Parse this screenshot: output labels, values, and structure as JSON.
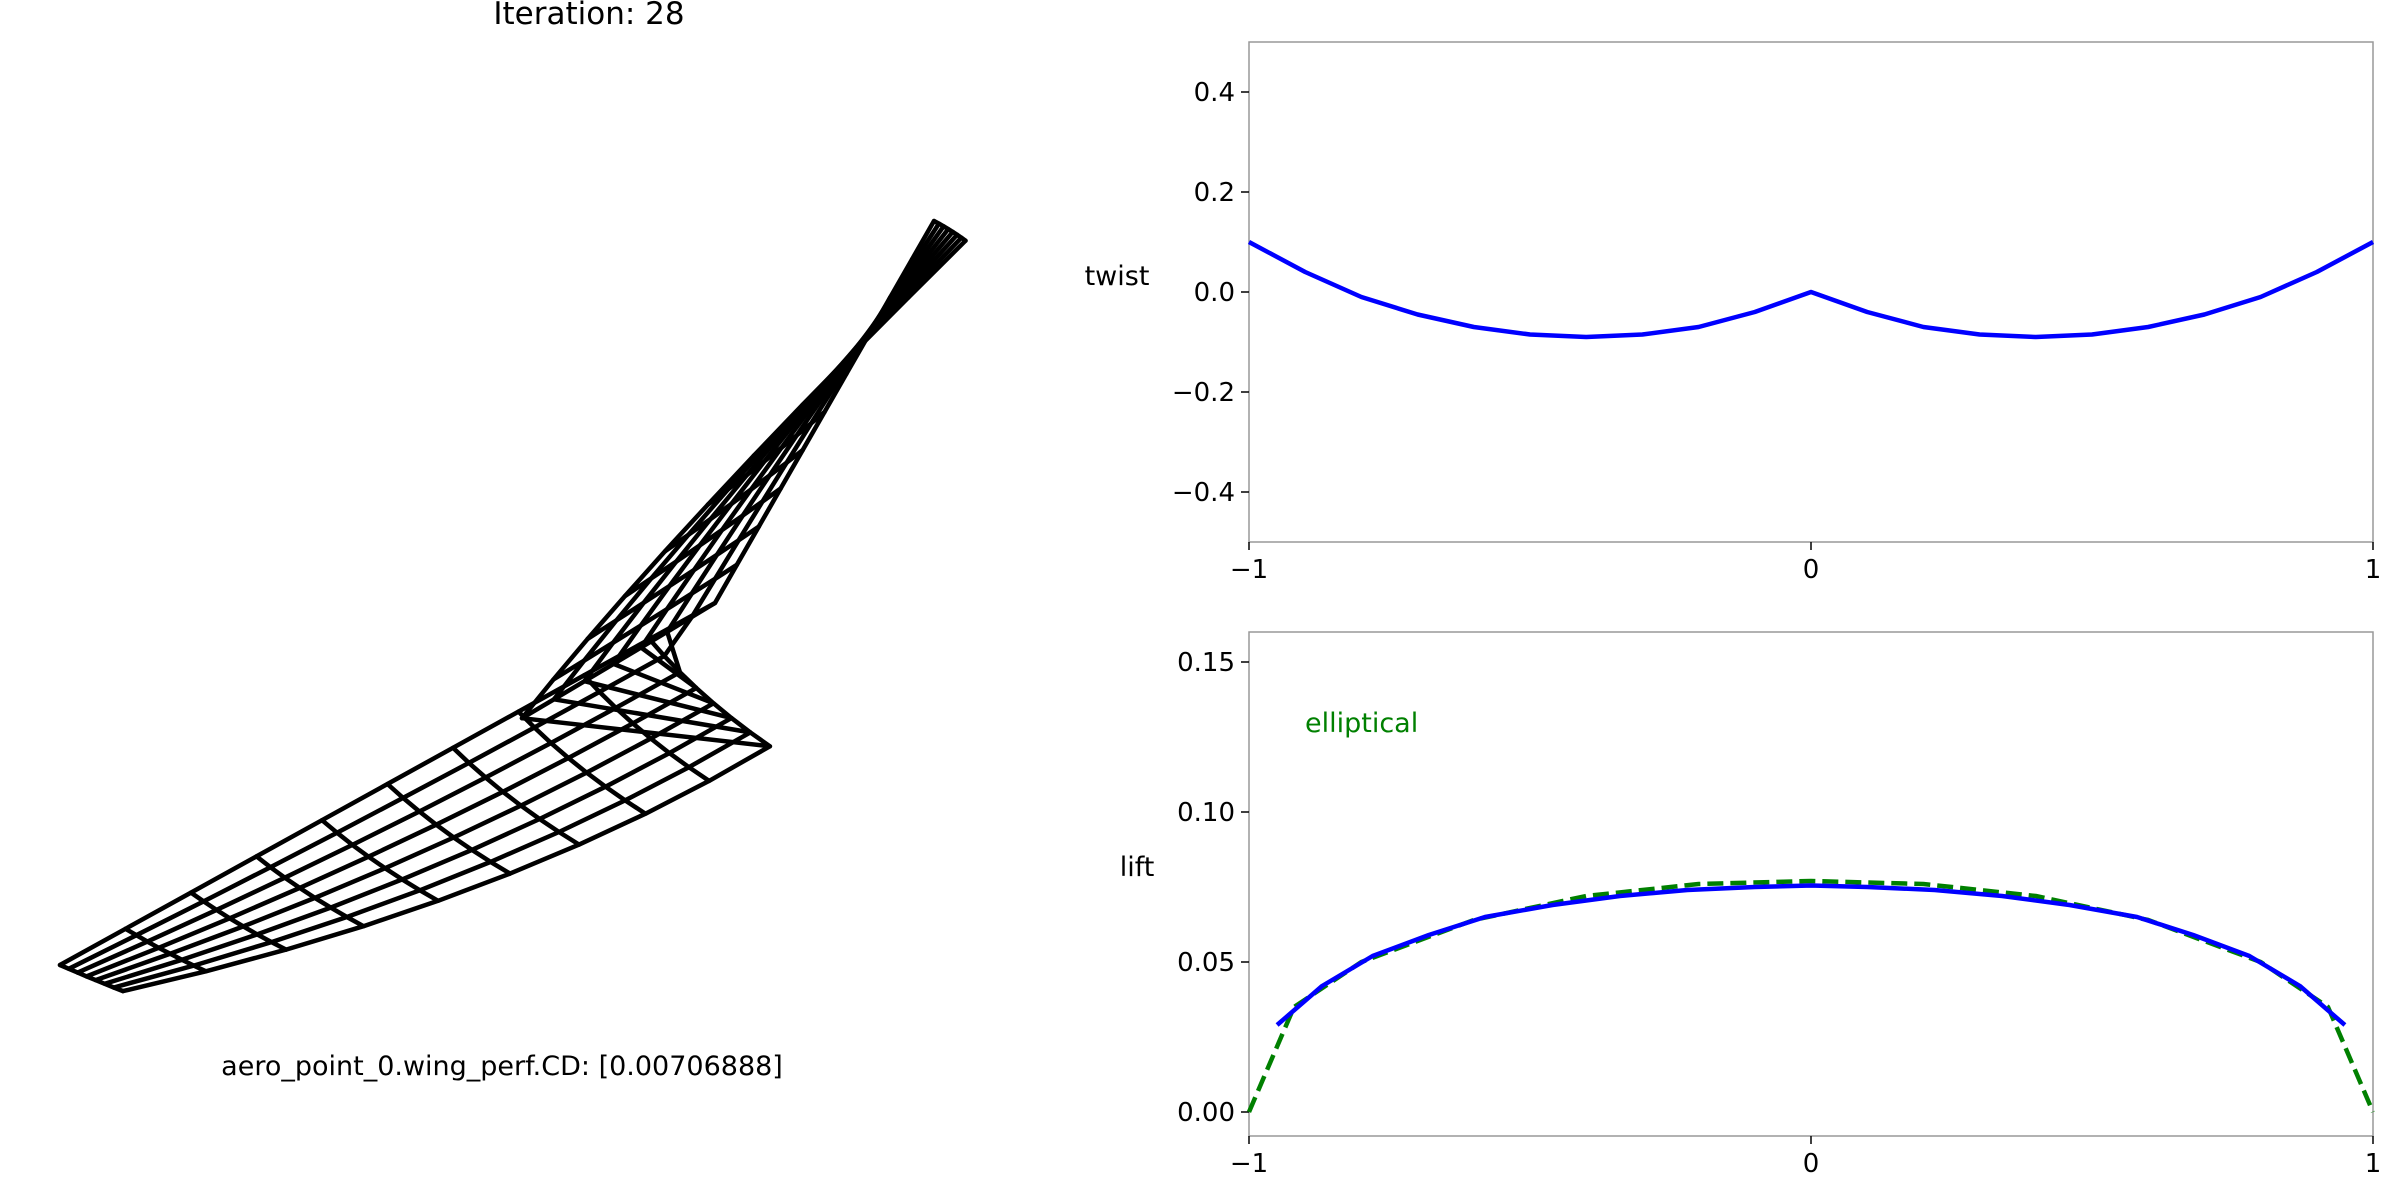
{
  "title": "Iteration: 28",
  "cd_label": "aero_point_0.wing_perf.CD: [0.00706888]",
  "colors": {
    "mesh": "#000000",
    "series": "#0000ff",
    "elliptical": "#008000",
    "axes": "#999999"
  },
  "chart_data": [
    {
      "type": "line",
      "ylabel": "twist",
      "xlim": [
        -1,
        1
      ],
      "ylim": [
        -0.5,
        0.5
      ],
      "xticks": [
        "−1",
        "0",
        "1"
      ],
      "yticks": [
        "0.4",
        "0.2",
        "0.0",
        "−0.2",
        "−0.4"
      ],
      "ytick_values": [
        0.4,
        0.2,
        0.0,
        -0.2,
        -0.4
      ],
      "xtick_values": [
        -1,
        0,
        1
      ],
      "series": [
        {
          "x": [
            -1.0,
            -0.9,
            -0.8,
            -0.7,
            -0.6,
            -0.5,
            -0.4,
            -0.3,
            -0.2,
            -0.1,
            0.0,
            0.1,
            0.2,
            0.3,
            0.4,
            0.5,
            0.6,
            0.7,
            0.8,
            0.9,
            1.0
          ],
          "y": [
            0.1,
            0.04,
            -0.01,
            -0.045,
            -0.07,
            -0.085,
            -0.09,
            -0.085,
            -0.07,
            -0.04,
            0.0,
            -0.04,
            -0.07,
            -0.085,
            -0.09,
            -0.085,
            -0.07,
            -0.045,
            -0.01,
            0.04,
            0.1
          ]
        }
      ]
    },
    {
      "type": "line",
      "ylabel": "lift",
      "xlim": [
        -1,
        1
      ],
      "ylim": [
        -0.008,
        0.16
      ],
      "xticks": [
        "−1",
        "0",
        "1"
      ],
      "yticks": [
        "0.15",
        "0.10",
        "0.05",
        "0.00"
      ],
      "ytick_values": [
        0.15,
        0.1,
        0.05,
        0.0
      ],
      "xtick_values": [
        -1,
        0,
        1
      ],
      "annotation": "elliptical",
      "series": [
        {
          "style": "solid",
          "x": [
            -0.95,
            -0.87,
            -0.78,
            -0.68,
            -0.58,
            -0.46,
            -0.34,
            -0.22,
            -0.1,
            0.0,
            0.1,
            0.22,
            0.34,
            0.46,
            0.58,
            0.68,
            0.78,
            0.87,
            0.95
          ],
          "y": [
            0.029,
            0.042,
            0.052,
            0.059,
            0.065,
            0.069,
            0.072,
            0.074,
            0.075,
            0.0755,
            0.075,
            0.074,
            0.072,
            0.069,
            0.065,
            0.059,
            0.052,
            0.042,
            0.029
          ]
        },
        {
          "name": "elliptical",
          "style": "dashed",
          "x": [
            -1.0,
            -0.92,
            -0.8,
            -0.6,
            -0.4,
            -0.2,
            0.0,
            0.2,
            0.4,
            0.6,
            0.8,
            0.92,
            1.0
          ],
          "y": [
            0.0,
            0.035,
            0.05,
            0.064,
            0.072,
            0.076,
            0.077,
            0.076,
            0.072,
            0.064,
            0.05,
            0.035,
            0.0
          ]
        }
      ]
    }
  ]
}
